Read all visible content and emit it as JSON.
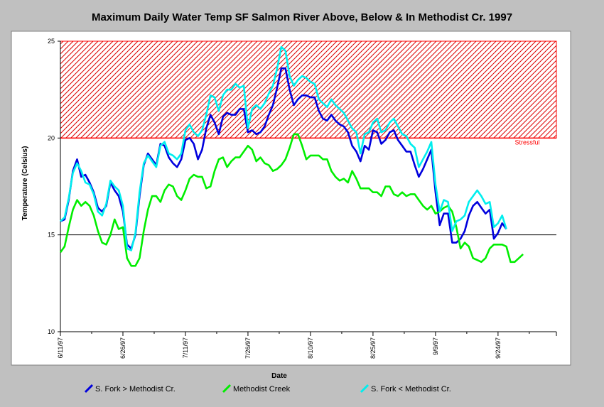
{
  "chart_data": {
    "type": "line",
    "title": "Maximum Daily Water Temp SF Salmon River Above, Below & In Methodist Cr. 1997",
    "xlabel": "Date",
    "ylabel": "Temperature (Celsius)",
    "ylim": [
      10,
      25
    ],
    "yticks": [
      "10",
      "15",
      "20",
      "25"
    ],
    "xtick_labels": [
      "6/11/97",
      "6/26/97",
      "7/11/97",
      "7/26/97",
      "8/10/97",
      "8/25/97",
      "9/9/97",
      "9/24/97"
    ],
    "x_start": "1997-06-11",
    "x_end": "1997-10-08",
    "reference_line": 15,
    "zone": {
      "label": "Stressful",
      "from": 20,
      "to": 25,
      "color": "#ff0000"
    },
    "legend_position": "bottom",
    "series": [
      {
        "name": "S. Fork > Methodist Cr.",
        "color": "#0000dd",
        "values": [
          15.7,
          15.8,
          16.8,
          18.3,
          18.9,
          18.0,
          18.1,
          17.7,
          17.2,
          16.4,
          16.2,
          16.5,
          17.7,
          17.3,
          17.0,
          16.2,
          14.5,
          14.3,
          15.0,
          17.0,
          18.6,
          19.2,
          18.9,
          18.6,
          19.7,
          19.6,
          19.0,
          18.7,
          18.5,
          18.9,
          19.9,
          20.0,
          19.7,
          18.9,
          19.4,
          20.5,
          21.2,
          20.8,
          20.2,
          21.1,
          21.3,
          21.2,
          21.2,
          21.5,
          21.5,
          20.3,
          20.4,
          20.2,
          20.3,
          20.6,
          21.2,
          21.7,
          22.6,
          23.6,
          23.6,
          22.5,
          21.7,
          22.0,
          22.2,
          22.2,
          22.1,
          22.1,
          21.4,
          21.0,
          20.9,
          21.2,
          20.9,
          20.7,
          20.6,
          20.3,
          19.6,
          19.3,
          18.8,
          19.6,
          19.4,
          20.4,
          20.3,
          19.7,
          19.9,
          20.3,
          20.4,
          19.9,
          19.6,
          19.3,
          19.3,
          18.6,
          18.0,
          18.4,
          18.9,
          19.4,
          17.2,
          15.5,
          16.1,
          16.1,
          14.6,
          14.6,
          14.8,
          15.2,
          16.0,
          16.5,
          16.7,
          16.4,
          16.1,
          16.3,
          14.8,
          15.1,
          15.6,
          15.3
        ]
      },
      {
        "name": "Methodist Creek",
        "color": "#00ee00",
        "values": [
          14.1,
          14.4,
          15.4,
          16.3,
          16.8,
          16.5,
          16.7,
          16.5,
          16.0,
          15.2,
          14.6,
          14.5,
          15.0,
          15.8,
          15.3,
          15.4,
          13.8,
          13.4,
          13.4,
          13.8,
          15.2,
          16.3,
          17.0,
          17.0,
          16.7,
          17.3,
          17.6,
          17.5,
          17.0,
          16.8,
          17.3,
          17.9,
          18.1,
          18.0,
          18.0,
          17.4,
          17.5,
          18.3,
          18.9,
          19.0,
          18.5,
          18.8,
          19.0,
          19.0,
          19.3,
          19.6,
          19.4,
          18.8,
          19.0,
          18.7,
          18.6,
          18.3,
          18.4,
          18.6,
          18.9,
          19.5,
          20.2,
          20.2,
          19.6,
          18.9,
          19.1,
          19.1,
          19.1,
          18.9,
          18.9,
          18.3,
          18.0,
          17.8,
          17.9,
          17.7,
          18.3,
          17.9,
          17.4,
          17.4,
          17.4,
          17.2,
          17.2,
          17.0,
          17.5,
          17.5,
          17.1,
          17.0,
          17.2,
          17.0,
          17.1,
          17.1,
          16.8,
          16.5,
          16.3,
          16.5,
          16.1,
          16.2,
          16.4,
          16.5,
          16.2,
          15.4,
          14.3,
          14.6,
          14.4,
          13.8,
          13.7,
          13.6,
          13.8,
          14.3,
          14.5,
          14.5,
          14.5,
          14.4,
          13.6,
          13.6,
          13.8,
          14.0
        ]
      },
      {
        "name": "S. Fork < Methodist Cr.",
        "color": "#00eeee",
        "values": [
          15.7,
          15.9,
          16.9,
          18.2,
          18.7,
          18.3,
          17.7,
          17.6,
          17.1,
          16.2,
          16.0,
          16.6,
          17.8,
          17.5,
          17.3,
          16.5,
          14.3,
          14.2,
          15.1,
          17.2,
          18.7,
          19.1,
          18.8,
          18.5,
          19.6,
          19.8,
          19.2,
          19.1,
          18.9,
          19.2,
          20.4,
          20.7,
          20.3,
          20.1,
          20.4,
          21.2,
          22.2,
          22.1,
          21.4,
          22.2,
          22.5,
          22.5,
          22.8,
          22.6,
          22.7,
          20.5,
          21.5,
          21.7,
          21.5,
          21.8,
          22.3,
          22.7,
          23.6,
          24.7,
          24.5,
          23.2,
          22.7,
          23.0,
          23.2,
          23.1,
          22.9,
          22.8,
          22.0,
          21.8,
          21.6,
          22.0,
          21.7,
          21.5,
          21.3,
          20.9,
          20.5,
          20.3,
          19.2,
          20.2,
          20.3,
          20.8,
          21.0,
          20.3,
          20.4,
          20.8,
          21.0,
          20.6,
          20.2,
          20.1,
          19.7,
          19.5,
          18.5,
          18.9,
          19.3,
          19.8,
          17.6,
          16.2,
          16.8,
          16.7,
          15.2,
          15.7,
          15.8,
          16.0,
          16.7,
          17.0,
          17.3,
          17.0,
          16.6,
          16.7,
          15.4,
          15.6,
          16.0,
          15.3
        ]
      }
    ]
  }
}
